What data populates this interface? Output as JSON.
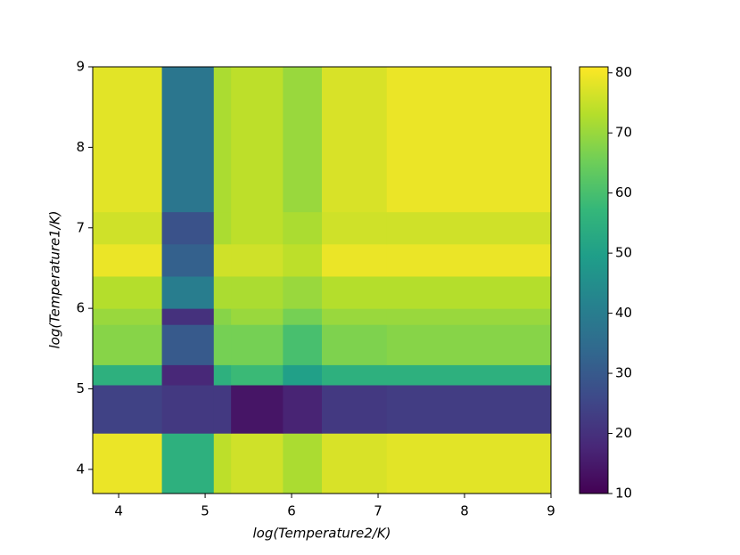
{
  "chart_data": {
    "type": "heatmap",
    "xlabel": "log(Temperature2/K)",
    "ylabel": "log(Temperature1/K)",
    "x_edges": [
      3.7,
      4.5,
      5.1,
      5.3,
      5.9,
      6.35,
      7.1,
      9
    ],
    "y_edges": [
      3.7,
      4.45,
      5.05,
      5.3,
      5.8,
      6.0,
      6.4,
      6.8,
      7.2,
      9
    ],
    "values": [
      [
        79,
        55,
        74,
        76,
        72,
        77,
        78
      ],
      [
        24,
        22,
        22,
        14,
        17,
        22,
        23
      ],
      [
        55,
        18,
        55,
        58,
        50,
        55,
        55
      ],
      [
        68,
        30,
        66,
        66,
        60,
        67,
        68
      ],
      [
        70,
        20,
        68,
        70,
        66,
        70,
        70
      ],
      [
        73,
        40,
        72,
        72,
        70,
        73,
        73
      ],
      [
        79,
        32,
        76,
        76,
        74,
        79,
        79
      ],
      [
        76,
        28,
        72,
        74,
        72,
        76,
        76
      ],
      [
        78,
        38,
        72,
        74,
        70,
        77,
        79
      ]
    ],
    "xlim": [
      3.7,
      9
    ],
    "ylim": [
      3.7,
      9
    ],
    "xticks": [
      4,
      5,
      6,
      7,
      8,
      9
    ],
    "yticks": [
      4,
      5,
      6,
      7,
      8,
      9
    ],
    "colormap": "viridis",
    "clim": [
      10,
      81
    ],
    "cticks": [
      10,
      20,
      30,
      40,
      50,
      60,
      70,
      80
    ]
  }
}
